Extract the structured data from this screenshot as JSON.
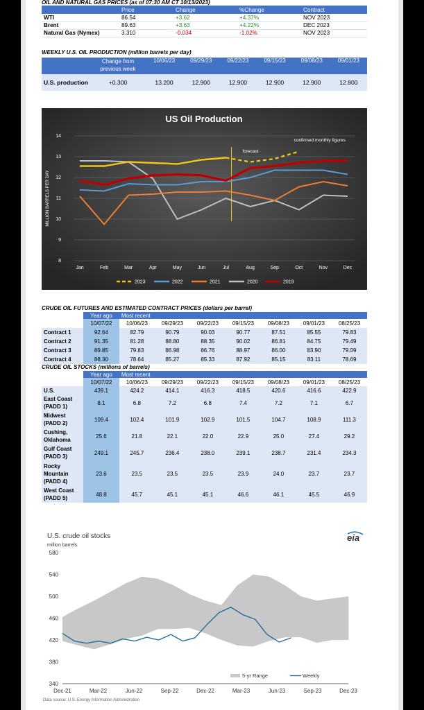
{
  "prices": {
    "title": "OIL AND NATURAL GAS PRICES (as of 07:30 AM CT 10/13/2023)",
    "headers": [
      "",
      "Price",
      "Change",
      "%Change",
      "Contract"
    ],
    "rows": [
      {
        "name": "WTI",
        "price": "86.54",
        "change": "+3.62",
        "pct": "+4.37%",
        "contract": "NOV 2023"
      },
      {
        "name": "Brent",
        "price": "89.63",
        "change": "+3.63",
        "pct": "+4.22%",
        "contract": "DEC 2023"
      },
      {
        "name": "Natural Gas (Nymex)",
        "price": "3.310",
        "change": "-0.034",
        "pct": "-1.02%",
        "contract": "NOV 2023"
      }
    ]
  },
  "weekly_production": {
    "title": "WEEKLY U.S. OIL PRODUCTION",
    "title_unit": "(million barrels per day)",
    "headers": [
      "",
      "Change from previous week",
      "10/06/23",
      "09/29/23",
      "09/22/23",
      "09/15/23",
      "09/08/23",
      "09/01/23"
    ],
    "row_label": "U.S. production",
    "values": [
      "+0.300",
      "13.200",
      "12.900",
      "12.900",
      "12.900",
      "12.900",
      "12.800"
    ]
  },
  "chart_data": [
    {
      "type": "line",
      "title": "US Oil Production",
      "ylabel": "MILLION BARRELS PER DAY",
      "ylim": [
        8,
        14
      ],
      "categories": [
        "Jan",
        "Feb",
        "Mar",
        "Apr",
        "May",
        "Jun",
        "Jul",
        "Aug",
        "Sep",
        "Oct",
        "Nov",
        "Dec"
      ],
      "annotations": [
        "forecast",
        "confirmed monthly figures"
      ],
      "series": [
        {
          "name": "2023",
          "color": "#f0c419",
          "values": [
            12.55,
            12.55,
            12.75,
            12.7,
            12.65,
            12.85,
            12.95,
            12.75,
            12.9,
            13.25,
            null,
            null
          ]
        },
        {
          "name": "2022",
          "color": "#5b9bd5",
          "values": [
            11.4,
            11.35,
            11.7,
            11.65,
            11.65,
            11.8,
            11.8,
            12.0,
            12.35,
            12.35,
            12.35,
            12.15
          ]
        },
        {
          "name": "2021",
          "color": "#ed7d31",
          "values": [
            11.1,
            9.75,
            11.15,
            11.2,
            11.3,
            11.3,
            11.35,
            11.15,
            10.9,
            11.55,
            11.8,
            11.6
          ]
        },
        {
          "name": "2020",
          "color": "#c0c0c0",
          "values": [
            12.8,
            12.8,
            12.75,
            11.95,
            10.0,
            10.45,
            11.0,
            10.6,
            10.9,
            10.45,
            11.15,
            11.1
          ]
        },
        {
          "name": "2019",
          "color": "#c00000",
          "values": [
            11.85,
            11.65,
            11.95,
            12.1,
            12.15,
            12.1,
            11.85,
            12.45,
            12.55,
            12.7,
            12.8,
            12.8
          ]
        }
      ]
    },
    {
      "type": "area",
      "title": "U.S. crude oil stocks",
      "subtitle": "million barrels",
      "logo": "eia",
      "source": "Data source: U.S. Energy Information Administration",
      "ylim": [
        340,
        580
      ],
      "yticks": [
        340,
        380,
        420,
        460,
        500,
        540,
        580
      ],
      "xticks": [
        "Dec-21",
        "Mar-22",
        "Jun-22",
        "Sep-22",
        "Dec-22",
        "Mar-23",
        "Jun-23",
        "Sep-23",
        "Dec-23"
      ],
      "legend": [
        "5-yr Range",
        "Weekly"
      ],
      "range_low": [
        418,
        410,
        403,
        412,
        422,
        428,
        440,
        440,
        442,
        432,
        420,
        410,
        408,
        418,
        425,
        425,
        415,
        420,
        420
      ],
      "range_high": [
        462,
        478,
        492,
        508,
        524,
        536,
        532,
        520,
        504,
        492,
        484,
        520,
        540,
        536,
        520,
        500,
        492,
        496,
        500
      ],
      "weekly": [
        432,
        418,
        414,
        418,
        414,
        422,
        418,
        425,
        420,
        430,
        418,
        424,
        448,
        470,
        480,
        466,
        458,
        430,
        416,
        424
      ]
    }
  ],
  "futures": {
    "title": "CRUDE OIL FUTURES AND ESTIMATED CONTRACT PRICES",
    "title_unit": "(dollars per barrel)",
    "group_headers": [
      "Year ago",
      "Most recent"
    ],
    "dates": [
      "10/07/22",
      "10/06/23",
      "09/29/23",
      "09/22/23",
      "09/15/23",
      "09/08/23",
      "09/01/23",
      "08/25/23"
    ],
    "rows": [
      {
        "name": "Contract 1",
        "values": [
          "92.64",
          "82.79",
          "90.79",
          "90.03",
          "90.77",
          "87.51",
          "85.55",
          "79.83"
        ]
      },
      {
        "name": "Contract 2",
        "values": [
          "91.35",
          "81.28",
          "88.80",
          "88.35",
          "90.02",
          "86.81",
          "84.75",
          "79.49"
        ]
      },
      {
        "name": "Contract 3",
        "values": [
          "89.85",
          "79.83",
          "86.98",
          "86.76",
          "88.97",
          "86.00",
          "83.90",
          "79.09"
        ]
      },
      {
        "name": "Contract 4",
        "values": [
          "88.30",
          "78.64",
          "85.27",
          "85.33",
          "87.92",
          "85.15",
          "83.11",
          "78.69"
        ]
      }
    ]
  },
  "stocks": {
    "title": "CRUDE OIL STOCKS",
    "title_unit": "(millions of barrels)",
    "group_headers": [
      "Year ago",
      "Most recent"
    ],
    "dates": [
      "10/07/22",
      "10/06/23",
      "09/29/23",
      "09/22/23",
      "09/15/23",
      "09/08/23",
      "09/01/23",
      "08/25/23"
    ],
    "rows": [
      {
        "name": "U.S.",
        "values": [
          "439.1",
          "424.2",
          "414.1",
          "416.3",
          "418.5",
          "420.6",
          "416.6",
          "422.9"
        ]
      },
      {
        "name": "East Coast (PADD 1)",
        "values": [
          "8.1",
          "6.8",
          "7.2",
          "6.8",
          "7.4",
          "7.2",
          "7.1",
          "6.7"
        ]
      },
      {
        "name": "Midwest (PADD 2)",
        "values": [
          "109.4",
          "102.4",
          "101.9",
          "102.9",
          "101.5",
          "104.7",
          "108.9",
          "111.3"
        ]
      },
      {
        "name": "Cushing, Oklahoma",
        "values": [
          "25.6",
          "21.8",
          "22.1",
          "22.0",
          "22.9",
          "25.0",
          "27.4",
          "29.2"
        ]
      },
      {
        "name": "Gulf Coast (PADD 3)",
        "values": [
          "249.1",
          "245.7",
          "236.4",
          "238.0",
          "239.1",
          "238.7",
          "231.4",
          "234.3"
        ]
      },
      {
        "name": "Rocky Mountain (PADD 4)",
        "values": [
          "23.6",
          "23.5",
          "23.5",
          "23.5",
          "23.9",
          "24.0",
          "23.7",
          "23.7"
        ]
      },
      {
        "name": "West Coast (PADD 5)",
        "values": [
          "48.8",
          "45.7",
          "45.1",
          "45.1",
          "46.6",
          "46.1",
          "45.5",
          "46.9"
        ]
      }
    ]
  }
}
